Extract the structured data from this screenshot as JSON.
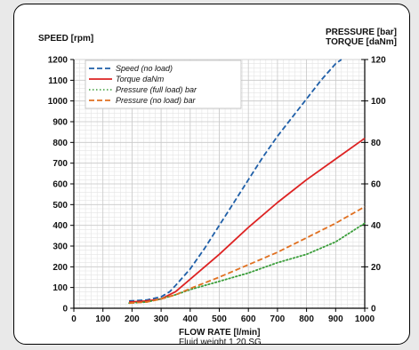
{
  "chart_data": {
    "type": "line",
    "left_axis_label": "SPEED  [rpm]",
    "right_axis_labels": [
      "PRESSURE  [bar]",
      "TORQUE  [daNm]"
    ],
    "xlabel": "FLOW RATE [l/min]",
    "note": "Fluid weight  1.20 SG",
    "xlim": [
      0,
      1000
    ],
    "ylim_left": [
      0,
      1200
    ],
    "ylim_right": [
      0,
      120
    ],
    "x_ticks": [
      "0",
      "100",
      "200",
      "300",
      "400",
      "500",
      "600",
      "700",
      "800",
      "900",
      "1000"
    ],
    "y_left_ticks": [
      "0",
      "100",
      "200",
      "300",
      "400",
      "500",
      "600",
      "700",
      "800",
      "900",
      "1000",
      "1100",
      "1200"
    ],
    "y_right_ticks": [
      "0",
      "20",
      "40",
      "60",
      "80",
      "100",
      "120"
    ],
    "grid": true,
    "legend_position": "top-left",
    "series": [
      {
        "name": "Speed (no load)",
        "axis": "left",
        "color": "#1f5fa8",
        "style": "dashed",
        "x": [
          190,
          250,
          300,
          330,
          350,
          400,
          450,
          500,
          550,
          600,
          650,
          700,
          750,
          800,
          850,
          900,
          920
        ],
        "y": [
          35,
          40,
          55,
          80,
          110,
          190,
          290,
          400,
          510,
          620,
          730,
          830,
          920,
          1010,
          1100,
          1180,
          1200
        ]
      },
      {
        "name": "Torque daNm",
        "axis": "right",
        "color": "#dd2222",
        "style": "solid",
        "x": [
          190,
          250,
          300,
          350,
          400,
          500,
          600,
          700,
          800,
          900,
          1000
        ],
        "y": [
          3,
          3.5,
          4.5,
          8,
          14,
          26,
          39,
          51,
          62,
          72,
          82
        ]
      },
      {
        "name": "Pressure (full load) bar",
        "axis": "right",
        "color": "#3a9e3a",
        "style": "dotted",
        "x": [
          190,
          250,
          300,
          350,
          400,
          500,
          600,
          700,
          800,
          900,
          1000
        ],
        "y": [
          2.5,
          3,
          4.5,
          6.5,
          9,
          13,
          17,
          22,
          26,
          32,
          41
        ]
      },
      {
        "name": "Pressure (no load) bar",
        "axis": "right",
        "color": "#e07020",
        "style": "dashed",
        "x": [
          190,
          250,
          300,
          350,
          400,
          500,
          600,
          700,
          800,
          900,
          1000
        ],
        "y": [
          2.5,
          3,
          4.5,
          6.5,
          9.5,
          15,
          21,
          27,
          34,
          41,
          49
        ]
      }
    ]
  }
}
